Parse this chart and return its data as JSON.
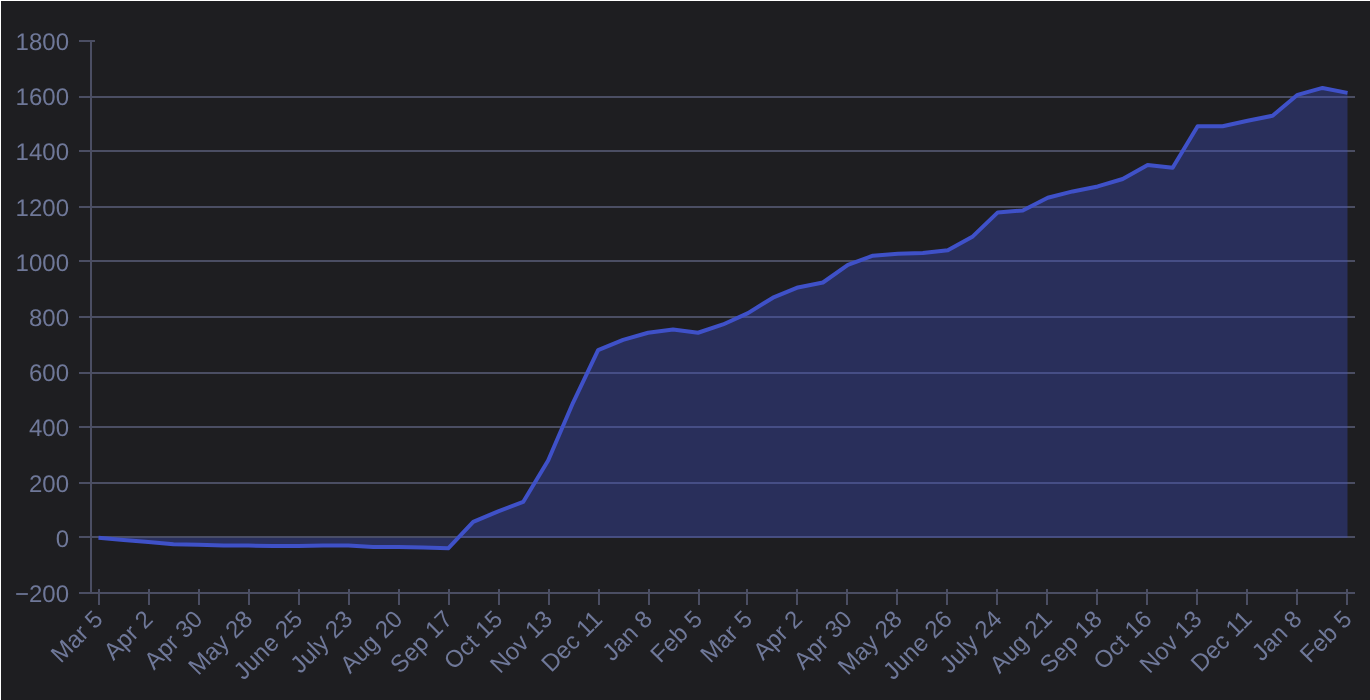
{
  "chart_data": {
    "type": "area",
    "categories": [
      "Mar 5",
      null,
      "Apr 2",
      null,
      "Apr 30",
      null,
      "May 28",
      null,
      "June 25",
      null,
      "July 23",
      null,
      "Aug 20",
      null,
      "Sep 17",
      null,
      "Oct 15",
      null,
      "Nov 13",
      null,
      "Dec 11",
      null,
      "Jan 8",
      null,
      "Feb 5",
      null,
      "Mar 5",
      null,
      "Apr 2",
      null,
      "Apr 30",
      null,
      "May 28",
      null,
      "June 26",
      null,
      "July 24",
      null,
      "Aug 21",
      null,
      "Sep 18",
      null,
      "Oct 16",
      null,
      "Nov 13",
      null,
      "Dec 11",
      null,
      "Jan 8",
      null,
      "Feb 5"
    ],
    "series": [
      {
        "color": "#3f51c8",
        "values": [
          0,
          -8,
          -15,
          -23,
          -25,
          -28,
          -28,
          -30,
          -30,
          -28,
          -28,
          -33,
          -33,
          -35,
          -38,
          58,
          96,
          130,
          280,
          490,
          680,
          717,
          743,
          755,
          743,
          773,
          814,
          870,
          907,
          925,
          989,
          1022,
          1029,
          1032,
          1042,
          1092,
          1179,
          1186,
          1232,
          1255,
          1273,
          1300,
          1351,
          1341,
          1491,
          1491,
          1511,
          1529,
          1605,
          1630,
          1612
        ]
      }
    ],
    "ylim": [
      -200,
      1800
    ],
    "yticks": [
      -200,
      0,
      200,
      400,
      600,
      800,
      1000,
      1200,
      1400,
      1600,
      1800
    ],
    "grid": "y"
  }
}
